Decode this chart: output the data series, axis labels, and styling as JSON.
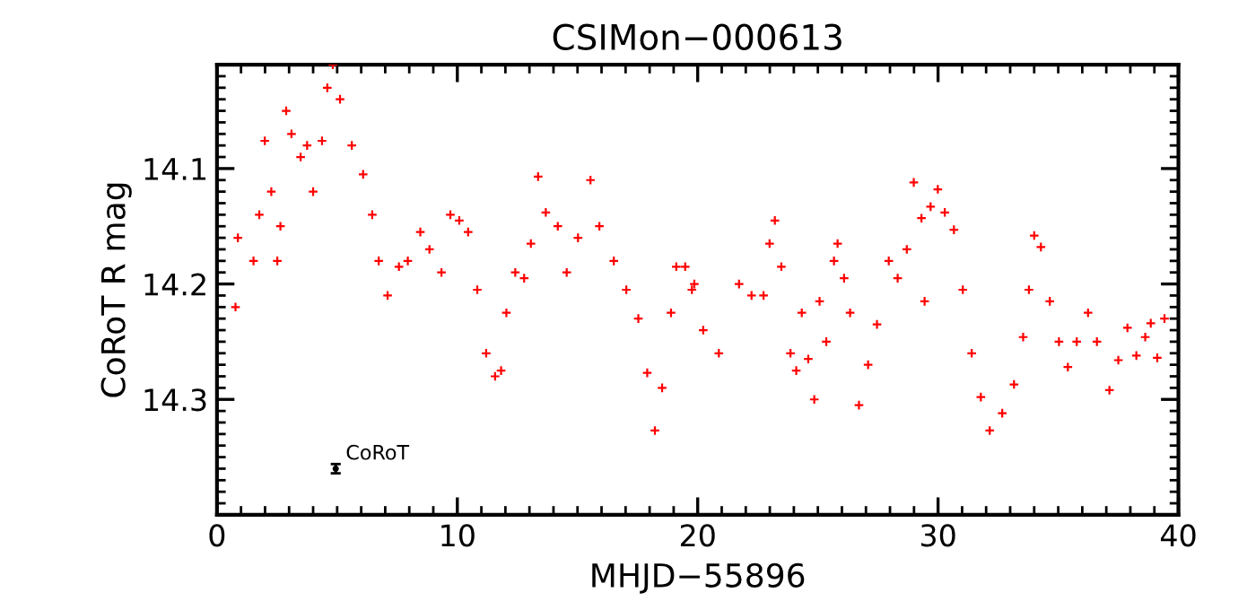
{
  "chart_data": {
    "type": "scatter",
    "title": "CSIMon−000613",
    "xlabel": "MHJD−55896",
    "ylabel": "CoRoT R mag",
    "xlim": [
      0,
      40
    ],
    "xticks": [
      0,
      10,
      20,
      30,
      40
    ],
    "ylim": [
      14.4,
      14.01
    ],
    "yticks": [
      14.1,
      14.2,
      14.3
    ],
    "grid": false,
    "legend": false,
    "marker": "cross",
    "series": [
      {
        "color": "#ff0000",
        "x": [
          0.77,
          0.87,
          1.52,
          1.76,
          1.99,
          2.26,
          2.51,
          2.64,
          2.88,
          3.1,
          3.48,
          3.75,
          4.0,
          4.37,
          4.59,
          4.82,
          5.12,
          5.61,
          6.08,
          6.46,
          6.73,
          7.1,
          7.57,
          7.94,
          8.46,
          8.84,
          9.34,
          9.71,
          10.08,
          10.45,
          10.83,
          11.2,
          11.57,
          11.82,
          12.04,
          12.41,
          12.78,
          13.06,
          13.36,
          13.68,
          14.18,
          14.55,
          15.02,
          15.54,
          15.91,
          16.51,
          17.03,
          17.53,
          17.9,
          18.22,
          18.52,
          18.89,
          19.11,
          19.48,
          19.76,
          19.86,
          20.23,
          20.88,
          21.72,
          22.24,
          22.74,
          22.99,
          23.21,
          23.48,
          23.86,
          24.1,
          24.33,
          24.6,
          24.85,
          25.07,
          25.35,
          25.67,
          25.82,
          26.09,
          26.34,
          26.71,
          27.09,
          27.46,
          27.95,
          28.32,
          28.7,
          28.99,
          29.31,
          29.44,
          29.69,
          29.99,
          30.28,
          30.66,
          31.03,
          31.4,
          31.78,
          32.15,
          32.67,
          33.16,
          33.54,
          33.78,
          34.0,
          34.28,
          34.65,
          35.03,
          35.4,
          35.77,
          36.24,
          36.61,
          37.13,
          37.5,
          37.88,
          38.25,
          38.62,
          38.85,
          39.12,
          39.42
        ],
        "values": [
          14.22,
          14.16,
          14.18,
          14.14,
          14.076,
          14.12,
          14.18,
          14.15,
          14.05,
          14.07,
          14.09,
          14.08,
          14.12,
          14.076,
          14.03,
          14.01,
          14.04,
          14.08,
          14.105,
          14.14,
          14.18,
          14.21,
          14.185,
          14.18,
          14.155,
          14.17,
          14.19,
          14.14,
          14.145,
          14.155,
          14.205,
          14.26,
          14.28,
          14.275,
          14.225,
          14.19,
          14.195,
          14.165,
          14.107,
          14.138,
          14.15,
          14.19,
          14.16,
          14.11,
          14.15,
          14.18,
          14.205,
          14.23,
          14.277,
          14.327,
          14.29,
          14.225,
          14.185,
          14.185,
          14.205,
          14.2,
          14.24,
          14.26,
          14.2,
          14.21,
          14.21,
          14.165,
          14.145,
          14.185,
          14.26,
          14.275,
          14.225,
          14.265,
          14.3,
          14.215,
          14.25,
          14.18,
          14.165,
          14.195,
          14.225,
          14.305,
          14.27,
          14.235,
          14.18,
          14.195,
          14.17,
          14.112,
          14.143,
          14.215,
          14.133,
          14.118,
          14.138,
          14.153,
          14.205,
          14.26,
          14.298,
          14.327,
          14.312,
          14.287,
          14.246,
          14.205,
          14.158,
          14.168,
          14.215,
          14.25,
          14.272,
          14.25,
          14.225,
          14.25,
          14.292,
          14.266,
          14.238,
          14.262,
          14.246,
          14.234,
          14.264,
          14.23
        ]
      },
      {
        "color": "#000000",
        "x": [
          4.94
        ],
        "values": [
          14.36
        ],
        "errors": [
          0.004
        ],
        "marker": "circle"
      }
    ],
    "annotations": [
      {
        "text": "CoRoT",
        "x": 4.94,
        "y": 14.36
      }
    ]
  }
}
